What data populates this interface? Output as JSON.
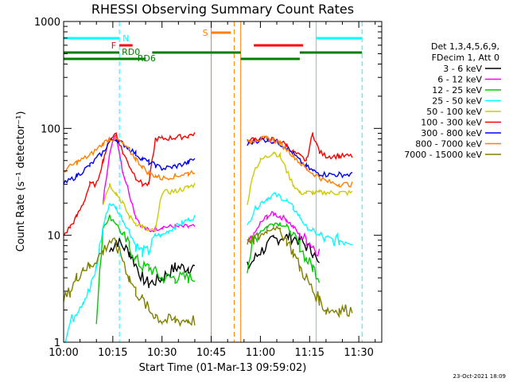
{
  "chart_data": {
    "type": "line",
    "title": "RHESSI Observing Summary Count Rates",
    "xlabel": "Start Time (01-Mar-13 09:59:02)",
    "ylabel": "Count Rate (s⁻¹ detector⁻¹)",
    "y_scale": "log",
    "ylim": [
      1,
      1000
    ],
    "xlim_minutes": [
      0,
      97
    ],
    "x_tick_labels": [
      "10:00",
      "10:15",
      "10:30",
      "10:45",
      "11:00",
      "11:15",
      "11:30"
    ],
    "y_tick_labels": [
      "1",
      "10",
      "100",
      "1000"
    ],
    "legend_header": [
      "Det 1,3,4,5,6,9,",
      "FDecim 1, Att 0"
    ],
    "legend_position": "right",
    "data_gaps_minutes": [
      [
        26,
        40
      ],
      [
        50,
        54
      ]
    ],
    "series": [
      {
        "name": "3 - 6 keV",
        "color": "#000000",
        "x": [
          0,
          5,
          10,
          14,
          16,
          20,
          24,
          26,
          30,
          34,
          38,
          40,
          54,
          56,
          60,
          64,
          68,
          72,
          76,
          78,
          80,
          84,
          88
        ],
        "y": [
          null,
          null,
          null,
          7,
          9,
          7,
          4,
          3.5,
          4,
          5,
          5,
          5,
          null,
          5,
          7,
          9,
          10,
          9,
          7,
          5,
          null,
          null,
          null
        ]
      },
      {
        "name": "6 - 12 keV",
        "color": "#ff00ff",
        "x": [
          0,
          10,
          12,
          14,
          16,
          18,
          20,
          22,
          24,
          26,
          30,
          34,
          38,
          40,
          54,
          56,
          58,
          60,
          62,
          64,
          66,
          68,
          70,
          72,
          74,
          76,
          78
        ],
        "y": [
          null,
          null,
          20,
          60,
          90,
          40,
          25,
          15,
          12,
          11,
          12,
          12,
          12,
          12,
          null,
          8,
          10,
          13,
          15,
          16,
          15,
          14,
          12,
          10,
          9,
          8,
          7
        ]
      },
      {
        "name": "12 - 25 keV",
        "color": "#00cc00",
        "x": [
          0,
          8,
          10,
          12,
          14,
          16,
          18,
          20,
          22,
          24,
          26,
          30,
          34,
          38,
          40,
          54,
          56,
          58,
          60,
          62,
          64,
          66,
          68,
          70,
          72,
          74,
          76,
          78
        ],
        "y": [
          null,
          null,
          1.5,
          12,
          15,
          13,
          10,
          8,
          6,
          5,
          5,
          4,
          4,
          4,
          4,
          null,
          5,
          9,
          11,
          12,
          13,
          13,
          12,
          10,
          8,
          6,
          5,
          4
        ]
      },
      {
        "name": "25 - 50 keV",
        "color": "#00ffff",
        "x": [
          0,
          2,
          4,
          6,
          8,
          10,
          12,
          14,
          16,
          18,
          20,
          22,
          24,
          26,
          28,
          30,
          32,
          34,
          36,
          38,
          40,
          54,
          56,
          58,
          60,
          62,
          64,
          66,
          68,
          70,
          72,
          74,
          76,
          78,
          80,
          84,
          88
        ],
        "y": [
          1,
          1.5,
          2,
          2.5,
          3,
          5,
          12,
          20,
          18,
          14,
          11,
          8,
          7,
          7,
          10,
          10,
          11,
          12,
          13,
          14,
          15,
          null,
          12,
          17,
          20,
          22,
          24,
          23,
          21,
          18,
          15,
          12,
          11,
          10,
          9,
          9,
          9
        ]
      },
      {
        "name": "50 - 100 keV",
        "color": "#cccc00",
        "x": [
          0,
          10,
          12,
          14,
          16,
          18,
          20,
          22,
          24,
          26,
          28,
          30,
          34,
          38,
          40,
          54,
          56,
          58,
          60,
          62,
          64,
          66,
          68,
          70,
          72,
          74,
          76,
          78,
          80,
          84,
          88
        ],
        "y": [
          null,
          null,
          20,
          30,
          25,
          20,
          15,
          13,
          12,
          11,
          11,
          25,
          26,
          28,
          30,
          null,
          20,
          40,
          50,
          55,
          60,
          55,
          40,
          30,
          25,
          25,
          25,
          25,
          25,
          25,
          25
        ]
      },
      {
        "name": "100 - 300 keV",
        "color": "#ff0000",
        "x": [
          0,
          2,
          4,
          6,
          8,
          10,
          12,
          14,
          16,
          18,
          20,
          22,
          24,
          26,
          28,
          30,
          34,
          38,
          40,
          54,
          56,
          58,
          60,
          62,
          64,
          66,
          68,
          70,
          72,
          74,
          76,
          78,
          80,
          84,
          88
        ],
        "y": [
          10,
          12,
          15,
          20,
          30,
          30,
          50,
          80,
          90,
          60,
          45,
          35,
          30,
          30,
          80,
          80,
          82,
          85,
          90,
          null,
          75,
          80,
          80,
          80,
          78,
          75,
          70,
          60,
          55,
          50,
          90,
          60,
          55,
          55,
          55
        ]
      },
      {
        "name": "300 - 800 keV",
        "color": "#0000ff",
        "x": [
          0,
          4,
          8,
          12,
          14,
          16,
          18,
          20,
          22,
          24,
          26,
          28,
          30,
          34,
          38,
          40,
          54,
          56,
          58,
          60,
          62,
          64,
          66,
          68,
          70,
          72,
          74,
          76,
          78,
          80,
          84,
          88
        ],
        "y": [
          30,
          36,
          45,
          60,
          75,
          80,
          72,
          65,
          58,
          52,
          48,
          45,
          42,
          44,
          48,
          52,
          null,
          70,
          76,
          78,
          78,
          76,
          72,
          66,
          58,
          50,
          44,
          40,
          38,
          37,
          37,
          37
        ]
      },
      {
        "name": "800 - 7000 keV",
        "color": "#ff8000",
        "x": [
          0,
          4,
          8,
          12,
          14,
          16,
          18,
          20,
          22,
          24,
          26,
          28,
          30,
          34,
          38,
          40,
          54,
          56,
          58,
          60,
          62,
          64,
          66,
          68,
          70,
          72,
          74,
          76,
          78,
          80,
          84,
          88
        ],
        "y": [
          40,
          48,
          56,
          72,
          80,
          80,
          72,
          62,
          52,
          44,
          38,
          36,
          34,
          36,
          38,
          40,
          null,
          72,
          78,
          80,
          80,
          78,
          72,
          64,
          56,
          48,
          42,
          38,
          35,
          32,
          30,
          30
        ]
      },
      {
        "name": "7000 - 15000 keV",
        "color": "#808000",
        "x": [
          0,
          2,
          4,
          6,
          8,
          10,
          12,
          14,
          16,
          18,
          20,
          22,
          24,
          26,
          28,
          30,
          34,
          38,
          40,
          54,
          56,
          58,
          60,
          62,
          64,
          66,
          68,
          70,
          72,
          74,
          76,
          78,
          80,
          84,
          88
        ],
        "y": [
          2.5,
          3,
          4,
          5,
          5,
          6,
          7,
          9,
          8,
          6,
          4,
          3,
          2.5,
          2,
          1.8,
          1.6,
          1.6,
          1.6,
          1.6,
          null,
          8,
          9,
          10,
          11,
          12,
          11,
          9,
          7,
          5,
          4,
          3,
          2.5,
          2,
          2,
          2
        ]
      }
    ],
    "vertical_lines": [
      {
        "color": "#00ffff",
        "style": "solid",
        "x": [
          0,
          77
        ]
      },
      {
        "color": "#00ffff",
        "style": "dashed",
        "x": [
          17,
          91
        ]
      },
      {
        "color": "#ff8000",
        "style": "solid",
        "x": [
          45,
          54
        ]
      },
      {
        "color": "#ff8000",
        "style": "dashed",
        "x": [
          52
        ]
      }
    ],
    "flag_bars": [
      {
        "label": "N",
        "color": "#00ffff",
        "level": 1,
        "segments": [
          [
            0,
            17
          ],
          [
            77,
            91
          ]
        ]
      },
      {
        "label": "S",
        "color": "#ff8000",
        "level": 0,
        "segments": [
          [
            45,
            51
          ]
        ]
      },
      {
        "label": "F",
        "color": "#ff0000",
        "level": 2,
        "segments": [
          [
            17,
            21
          ],
          [
            58,
            73
          ]
        ]
      },
      {
        "label": "RD0",
        "color": "#008000",
        "level": 3,
        "segments": [
          [
            0,
            17
          ],
          [
            27,
            54
          ],
          [
            72,
            91
          ]
        ]
      },
      {
        "label": "RD6",
        "color": "#008000",
        "level": 4,
        "segments": [
          [
            0,
            25
          ],
          [
            54,
            72
          ]
        ]
      }
    ]
  },
  "footer_date": "23-Oct-2021 18:09"
}
